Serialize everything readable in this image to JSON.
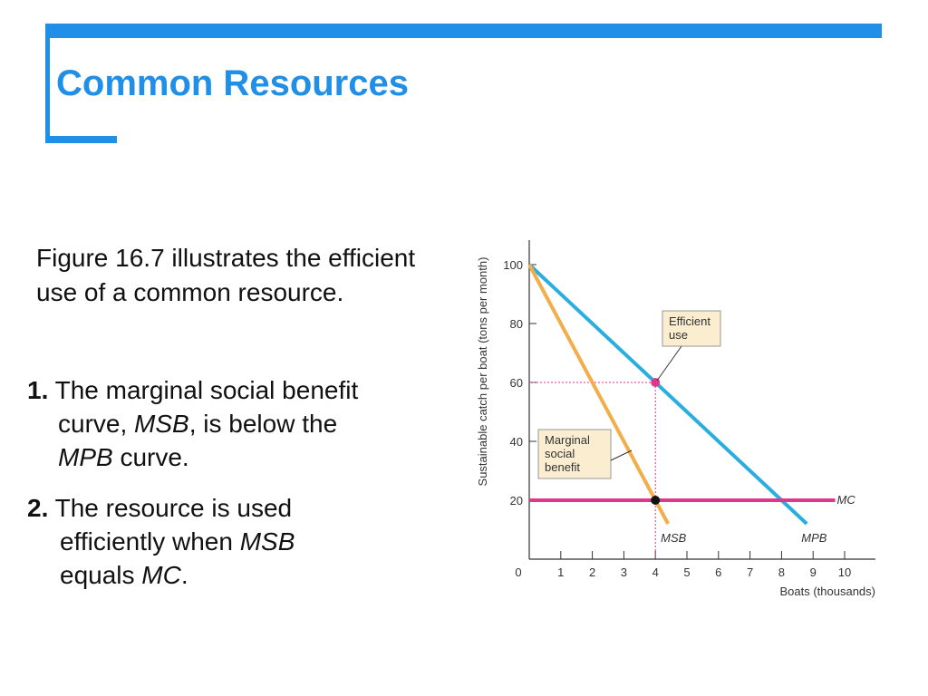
{
  "slide": {
    "title": "Common Resources",
    "intro": "Figure 16.7 illustrates the efficient use of a common resource.",
    "points": [
      {
        "num": "1.",
        "text_a": " The marginal social benefit",
        "text_b": "curve, ",
        "em_1": "MSB",
        "text_c": ", is below the",
        "em_2": "MPB",
        "text_d": " curve."
      },
      {
        "num": "2.",
        "text_a": " The resource is used",
        "text_b": "efficiently when ",
        "em_1": "MSB",
        "text_c": "equals ",
        "em_2": "MC",
        "text_d": "."
      }
    ],
    "colors": {
      "accent": "#1f8fe8"
    }
  },
  "chart_data": {
    "type": "line",
    "xlabel": "Boats  (thousands)",
    "ylabel": "Sustainable catch per boat (tons per month)",
    "xlim": [
      0,
      10
    ],
    "ylim": [
      0,
      100
    ],
    "x_ticks": [
      "1",
      "2",
      "3",
      "4",
      "5",
      "6",
      "7",
      "8",
      "9",
      "10"
    ],
    "y_ticks": [
      "20",
      "40",
      "60",
      "80",
      "100"
    ],
    "origin_label": "0",
    "highlight_x": "4",
    "highlight_y": "60",
    "series": [
      {
        "name": "MPB",
        "color": "#2aaee0",
        "points": [
          [
            0,
            100
          ],
          [
            8.8,
            12
          ]
        ]
      },
      {
        "name": "MSB",
        "color": "#f2ae4a",
        "points": [
          [
            0,
            100
          ],
          [
            4.4,
            12
          ]
        ]
      },
      {
        "name": "MC",
        "color": "#e0368c",
        "points": [
          [
            0,
            20
          ],
          [
            9.7,
            20
          ]
        ]
      }
    ],
    "markers": [
      {
        "x": 4,
        "y": 60,
        "color": "#e0368c"
      },
      {
        "x": 4,
        "y": 20,
        "color": "#111111"
      }
    ],
    "annotations": {
      "efficient": [
        "Efficient",
        "use"
      ],
      "msb": [
        "Marginal",
        "social",
        "benefit"
      ]
    }
  }
}
